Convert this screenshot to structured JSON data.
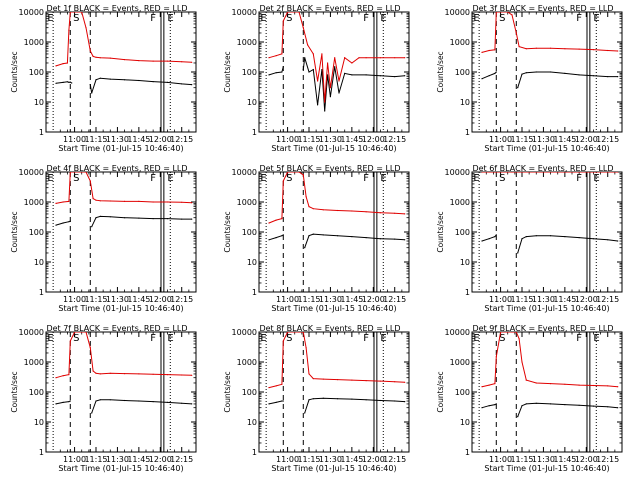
{
  "colors": {
    "events": "#000000",
    "lld": "#e00000",
    "axes": "#000000"
  },
  "chart_data": [
    {
      "type": "line",
      "title": "Det 1f BLACK = Events, RED = LLD",
      "xlabel": "Start Time (01-Jul-15 10:46:40)",
      "ylabel": "Counts/sec",
      "yscale": "log",
      "ylim": [
        1,
        10000
      ],
      "xlim_minutes": [
        640,
        745
      ],
      "x_ticks": [
        "11:00",
        "11:15",
        "11:30",
        "11:45",
        "12:00",
        "12:15"
      ],
      "y_ticks": [
        "1",
        "10",
        "100",
        "1000",
        "10000"
      ],
      "markers": [
        "E",
        "S",
        "F",
        "E"
      ],
      "series": [
        {
          "name": "Events",
          "color": "#000000",
          "x": [
            647,
            652,
            655,
            656,
            657,
            658,
            660,
            662,
            665,
            668,
            671,
            672,
            675,
            678,
            685,
            695,
            705,
            715,
            725,
            735,
            742
          ],
          "y": [
            42,
            45,
            47,
            45,
            46,
            43,
            "gap",
            "gap",
            "gap",
            "gap",
            38,
            20,
            55,
            62,
            58,
            55,
            52,
            48,
            45,
            40,
            38
          ]
        },
        {
          "name": "LLD",
          "color": "#e00000",
          "x": [
            647,
            652,
            655,
            656,
            657,
            660,
            662,
            665,
            668,
            671,
            673,
            675,
            678,
            685,
            695,
            705,
            715,
            725,
            735,
            742
          ],
          "y": [
            160,
            190,
            200,
            2500,
            10000,
            10000,
            10000,
            10000,
            3000,
            500,
            330,
            310,
            300,
            290,
            260,
            240,
            230,
            230,
            220,
            210
          ]
        }
      ]
    },
    {
      "type": "line",
      "title": "Det 2f BLACK = Events, RED = LLD",
      "xlabel": "Start Time (01-Jul-15 10:46:40)",
      "ylabel": "Counts/sec",
      "yscale": "log",
      "ylim": [
        1,
        10000
      ],
      "xlim_minutes": [
        640,
        745
      ],
      "x_ticks": [
        "11:00",
        "11:15",
        "11:30",
        "11:45",
        "12:00",
        "12:15"
      ],
      "y_ticks": [
        "1",
        "10",
        "100",
        "1000",
        "10000"
      ],
      "markers": [
        "E",
        "S",
        "F",
        "E"
      ],
      "series": [
        {
          "name": "Events",
          "color": "#000000",
          "x": [
            647,
            652,
            656,
            657,
            670,
            671,
            672,
            675,
            678,
            681,
            684,
            686,
            688,
            690,
            693,
            696,
            700,
            705,
            715,
            725,
            735,
            742
          ],
          "y": [
            80,
            95,
            100,
            150,
            "gap",
            120,
            300,
            100,
            120,
            8,
            120,
            5,
            80,
            15,
            150,
            20,
            90,
            80,
            80,
            75,
            70,
            75
          ]
        },
        {
          "name": "LLD",
          "color": "#e00000",
          "x": [
            647,
            652,
            656,
            657,
            660,
            665,
            668,
            671,
            674,
            678,
            681,
            684,
            686,
            688,
            690,
            693,
            696,
            700,
            705,
            710,
            715,
            725,
            735,
            742
          ],
          "y": [
            300,
            350,
            400,
            5000,
            10000,
            10000,
            10000,
            3000,
            800,
            400,
            50,
            400,
            10,
            200,
            30,
            300,
            50,
            300,
            200,
            300,
            300,
            300,
            300,
            300
          ]
        }
      ]
    },
    {
      "type": "line",
      "title": "Det 3f BLACK = Events, RED = LLD",
      "xlabel": "Start Time (01-Jul-15 10:46:40)",
      "ylabel": "Counts/sec",
      "yscale": "log",
      "ylim": [
        1,
        10000
      ],
      "xlim_minutes": [
        640,
        745
      ],
      "x_ticks": [
        "11:00",
        "11:15",
        "11:30",
        "11:45",
        "12:00",
        "12:15"
      ],
      "y_ticks": [
        "1",
        "10",
        "100",
        "1000",
        "10000"
      ],
      "markers": [
        "E",
        "S",
        "F",
        "E"
      ],
      "series": [
        {
          "name": "Events",
          "color": "#000000",
          "x": [
            647,
            652,
            656,
            657,
            671,
            672,
            675,
            678,
            685,
            695,
            705,
            715,
            725,
            735,
            742
          ],
          "y": [
            60,
            75,
            90,
            100,
            "gap",
            30,
            85,
            95,
            100,
            100,
            90,
            80,
            75,
            70,
            70
          ]
        },
        {
          "name": "LLD",
          "color": "#e00000",
          "x": [
            647,
            652,
            656,
            657,
            660,
            665,
            668,
            671,
            673,
            678,
            685,
            695,
            705,
            715,
            725,
            735,
            742
          ],
          "y": [
            450,
            520,
            550,
            10000,
            10000,
            10000,
            8000,
            2000,
            700,
            600,
            620,
            620,
            600,
            580,
            560,
            520,
            500
          ]
        }
      ]
    },
    {
      "type": "line",
      "title": "Det 4f BLACK = Events, RED = LLD",
      "xlabel": "Start Time (01-Jul-15 10:46:40)",
      "ylabel": "Counts/sec",
      "yscale": "log",
      "ylim": [
        1,
        10000
      ],
      "xlim_minutes": [
        640,
        745
      ],
      "x_ticks": [
        "11:00",
        "11:15",
        "11:30",
        "11:45",
        "12:00",
        "12:15"
      ],
      "y_ticks": [
        "1",
        "10",
        "100",
        "1000",
        "10000"
      ],
      "markers": [
        "E",
        "S",
        "F",
        "E"
      ],
      "series": [
        {
          "name": "Events",
          "color": "#000000",
          "x": [
            647,
            652,
            656,
            657,
            671,
            672,
            675,
            678,
            685,
            695,
            705,
            715,
            725,
            735,
            742
          ],
          "y": [
            170,
            200,
            220,
            230,
            "gap",
            150,
            300,
            330,
            320,
            300,
            290,
            280,
            280,
            270,
            270
          ]
        },
        {
          "name": "LLD",
          "color": "#e00000",
          "x": [
            647,
            652,
            656,
            657,
            660,
            665,
            668,
            671,
            673,
            675,
            678,
            685,
            695,
            705,
            715,
            725,
            735,
            742
          ],
          "y": [
            900,
            1000,
            1050,
            10000,
            10000,
            10000,
            10000,
            5000,
            1300,
            1150,
            1100,
            1080,
            1050,
            1050,
            1000,
            1000,
            980,
            950
          ]
        }
      ]
    },
    {
      "type": "line",
      "title": "Det 5f BLACK = Events, RED = LLD",
      "xlabel": "Start Time (01-Jul-15 10:46:40)",
      "ylabel": "Counts/sec",
      "yscale": "log",
      "ylim": [
        1,
        10000
      ],
      "xlim_minutes": [
        640,
        745
      ],
      "x_ticks": [
        "11:00",
        "11:15",
        "11:30",
        "11:45",
        "12:00",
        "12:15"
      ],
      "y_ticks": [
        "1",
        "10",
        "100",
        "1000",
        "10000"
      ],
      "markers": [
        "E",
        "S",
        "F",
        "E"
      ],
      "series": [
        {
          "name": "Events",
          "color": "#000000",
          "x": [
            647,
            652,
            656,
            657,
            671,
            672,
            675,
            678,
            685,
            695,
            705,
            715,
            725,
            735,
            742
          ],
          "y": [
            55,
            65,
            75,
            80,
            "gap",
            30,
            75,
            85,
            80,
            75,
            70,
            65,
            60,
            58,
            55
          ]
        },
        {
          "name": "LLD",
          "color": "#e00000",
          "x": [
            647,
            652,
            656,
            657,
            660,
            665,
            668,
            671,
            673,
            675,
            678,
            685,
            695,
            705,
            715,
            725,
            735,
            742
          ],
          "y": [
            200,
            250,
            280,
            5000,
            10000,
            10000,
            10000,
            8000,
            1500,
            700,
            600,
            550,
            520,
            500,
            470,
            440,
            420,
            400
          ]
        }
      ]
    },
    {
      "type": "line",
      "title": "Det 6f BLACK = Events, RED = LLD",
      "xlabel": "Start Time (01-Jul-15 10:46:40)",
      "ylabel": "Counts/sec",
      "yscale": "log",
      "ylim": [
        1,
        10000
      ],
      "xlim_minutes": [
        640,
        745
      ],
      "x_ticks": [
        "11:00",
        "11:15",
        "11:30",
        "11:45",
        "12:00",
        "12:15"
      ],
      "y_ticks": [
        "1",
        "10",
        "100",
        "1000",
        "10000"
      ],
      "markers": [
        "E",
        "S",
        "F",
        "E"
      ],
      "series": [
        {
          "name": "Events",
          "color": "#000000",
          "x": [
            647,
            652,
            656,
            657,
            671,
            672,
            675,
            678,
            685,
            695,
            705,
            715,
            725,
            735,
            742
          ],
          "y": [
            50,
            60,
            70,
            80,
            "gap",
            20,
            60,
            70,
            75,
            75,
            70,
            65,
            60,
            55,
            50
          ]
        },
        {
          "name": "LLD",
          "color": "#e00000",
          "x": [
            647,
            652,
            656,
            657,
            660,
            665,
            668,
            671,
            673,
            675,
            685,
            695,
            705,
            715,
            725,
            735,
            742
          ],
          "y": [
            10000,
            10000,
            10000,
            10000,
            10000,
            10000,
            10000,
            10000,
            10000,
            10000,
            10000,
            10000,
            10000,
            10000,
            10000,
            10000,
            10000
          ]
        }
      ]
    },
    {
      "type": "line",
      "title": "Det 7f BLACK = Events, RED = LLD",
      "xlabel": "Start Time (01-Jul-15 10:46:40)",
      "ylabel": "Counts/sec",
      "yscale": "log",
      "ylim": [
        1,
        10000
      ],
      "xlim_minutes": [
        640,
        745
      ],
      "x_ticks": [
        "11:00",
        "11:15",
        "11:30",
        "11:45",
        "12:00",
        "12:15"
      ],
      "y_ticks": [
        "1",
        "10",
        "100",
        "1000",
        "10000"
      ],
      "markers": [
        "E",
        "S",
        "F",
        "E"
      ],
      "series": [
        {
          "name": "Events",
          "color": "#000000",
          "x": [
            647,
            652,
            656,
            657,
            671,
            672,
            675,
            678,
            685,
            695,
            705,
            715,
            725,
            735,
            742
          ],
          "y": [
            40,
            45,
            48,
            50,
            "gap",
            20,
            50,
            55,
            55,
            52,
            50,
            48,
            45,
            42,
            40
          ]
        },
        {
          "name": "LLD",
          "color": "#e00000",
          "x": [
            647,
            652,
            656,
            657,
            660,
            665,
            668,
            671,
            673,
            675,
            678,
            685,
            695,
            705,
            715,
            725,
            735,
            742
          ],
          "y": [
            300,
            350,
            380,
            5000,
            10000,
            10000,
            10000,
            3000,
            500,
            420,
            400,
            420,
            410,
            400,
            390,
            380,
            370,
            360
          ]
        }
      ]
    },
    {
      "type": "line",
      "title": "Det 8f BLACK = Events, RED = LLD",
      "xlabel": "Start Time (01-Jul-15 10:46:40)",
      "ylabel": "Counts/sec",
      "yscale": "log",
      "ylim": [
        1,
        10000
      ],
      "xlim_minutes": [
        640,
        745
      ],
      "x_ticks": [
        "11:00",
        "11:15",
        "11:30",
        "11:45",
        "12:00",
        "12:15"
      ],
      "y_ticks": [
        "1",
        "10",
        "100",
        "1000",
        "10000"
      ],
      "markers": [
        "E",
        "S",
        "F",
        "E"
      ],
      "series": [
        {
          "name": "Events",
          "color": "#000000",
          "x": [
            647,
            652,
            656,
            657,
            671,
            672,
            675,
            678,
            685,
            695,
            705,
            715,
            725,
            735,
            742
          ],
          "y": [
            40,
            45,
            50,
            50,
            "gap",
            20,
            55,
            60,
            62,
            60,
            58,
            55,
            52,
            50,
            48
          ]
        },
        {
          "name": "LLD",
          "color": "#e00000",
          "x": [
            647,
            652,
            656,
            657,
            660,
            665,
            668,
            671,
            673,
            675,
            678,
            685,
            695,
            705,
            715,
            725,
            735,
            742
          ],
          "y": [
            140,
            160,
            180,
            5000,
            10000,
            10000,
            10000,
            10000,
            3000,
            400,
            280,
            270,
            260,
            250,
            240,
            230,
            220,
            210
          ]
        }
      ]
    },
    {
      "type": "line",
      "title": "Det 9f BLACK = Events, RED = LLD",
      "xlabel": "Start Time (01-Jul-15 10:46:40)",
      "ylabel": "Counts/sec",
      "yscale": "log",
      "ylim": [
        1,
        10000
      ],
      "xlim_minutes": [
        640,
        745
      ],
      "x_ticks": [
        "11:00",
        "11:15",
        "11:30",
        "11:45",
        "12:00",
        "12:15"
      ],
      "y_ticks": [
        "1",
        "10",
        "100",
        "1000",
        "10000"
      ],
      "markers": [
        "E",
        "S",
        "F",
        "E"
      ],
      "series": [
        {
          "name": "Events",
          "color": "#000000",
          "x": [
            647,
            652,
            656,
            657,
            671,
            672,
            675,
            678,
            685,
            695,
            705,
            715,
            725,
            735,
            742
          ],
          "y": [
            30,
            35,
            38,
            40,
            "gap",
            15,
            35,
            40,
            42,
            40,
            38,
            36,
            34,
            32,
            30
          ]
        },
        {
          "name": "LLD",
          "color": "#e00000",
          "x": [
            647,
            652,
            656,
            657,
            660,
            665,
            668,
            671,
            673,
            675,
            678,
            685,
            695,
            705,
            715,
            725,
            735,
            742
          ],
          "y": [
            150,
            170,
            190,
            1500,
            10000,
            10000,
            10000,
            10000,
            6000,
            1000,
            250,
            200,
            190,
            180,
            170,
            165,
            160,
            150
          ]
        }
      ]
    }
  ]
}
